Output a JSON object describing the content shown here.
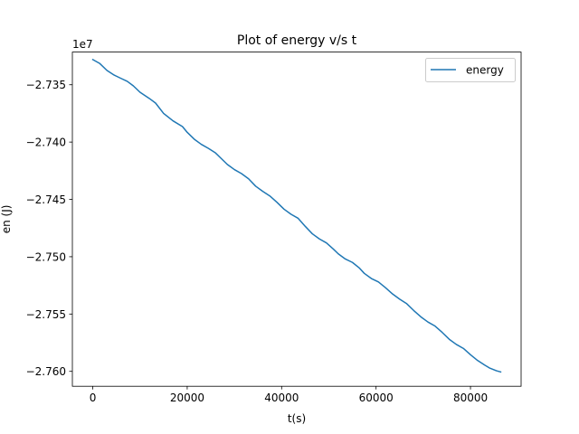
{
  "chart_data": {
    "type": "line",
    "title": "Plot of energy v/s t",
    "xlabel": "t(s)",
    "ylabel": "en (J)",
    "y_offset_label": "1e7",
    "xlim": [
      -4320,
      90720
    ],
    "ylim": [
      -27613000,
      -27321500
    ],
    "xticks": [
      0,
      20000,
      40000,
      60000,
      80000
    ],
    "xtick_labels": [
      "0",
      "20000",
      "40000",
      "60000",
      "80000"
    ],
    "yticks": [
      -27600000,
      -27550000,
      -27500000,
      -27450000,
      -27400000,
      -27350000
    ],
    "ytick_labels": [
      "−2.760",
      "−2.755",
      "−2.750",
      "−2.745",
      "−2.740",
      "−2.735"
    ],
    "grid": false,
    "legend_position": "upper right",
    "series": [
      {
        "name": "energy",
        "color": "#1f77b4",
        "x": [
          0,
          1500,
          3000,
          4500,
          6000,
          7300,
          8600,
          10000,
          12000,
          13300,
          15000,
          17000,
          19000,
          20000,
          21500,
          23000,
          24500,
          26000,
          27000,
          28500,
          30000,
          31500,
          33000,
          34500,
          36000,
          37500,
          39000,
          40500,
          42000,
          43500,
          45000,
          46500,
          48000,
          49500,
          51000,
          52000,
          53500,
          55000,
          56500,
          57500,
          59000,
          60500,
          62000,
          63500,
          65000,
          66500,
          68000,
          69500,
          71000,
          72500,
          74000,
          75500,
          77000,
          78500,
          80000,
          81500,
          83000,
          84000,
          85500,
          86400
        ],
        "y": [
          -27328000,
          -27331500,
          -27337500,
          -27341500,
          -27344500,
          -27347000,
          -27351000,
          -27356500,
          -27362000,
          -27366000,
          -27375000,
          -27381500,
          -27386500,
          -27391500,
          -27397500,
          -27402000,
          -27405500,
          -27409500,
          -27413500,
          -27419500,
          -27424000,
          -27427500,
          -27432000,
          -27438500,
          -27443000,
          -27447000,
          -27452500,
          -27458500,
          -27463000,
          -27466500,
          -27473500,
          -27480000,
          -27484500,
          -27488000,
          -27493500,
          -27497500,
          -27502000,
          -27505000,
          -27510000,
          -27514500,
          -27519000,
          -27522000,
          -27527000,
          -27532500,
          -27537000,
          -27541000,
          -27547000,
          -27552500,
          -27557000,
          -27560500,
          -27566000,
          -27572000,
          -27576500,
          -27580000,
          -27585500,
          -27590500,
          -27594500,
          -27597000,
          -27599500,
          -27600500
        ]
      }
    ]
  }
}
